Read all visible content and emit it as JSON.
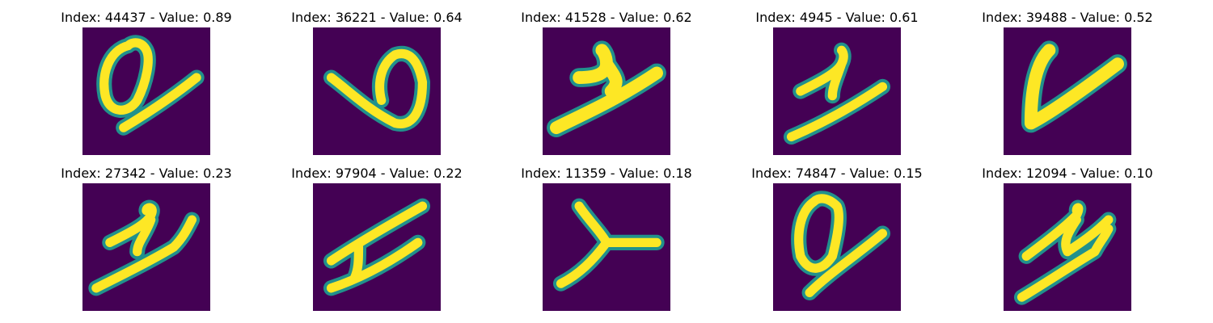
{
  "colors": {
    "background": "#440154",
    "stroke_outer": "#21918c",
    "stroke_inner": "#fde725"
  },
  "panels": [
    {
      "title": "Index: 44437 - Value: 0.89",
      "glyph": "loop-cross"
    },
    {
      "title": "Index: 36221 - Value: 0.64",
      "glyph": "loop-b"
    },
    {
      "title": "Index: 41528 - Value: 0.62",
      "glyph": "y-thick"
    },
    {
      "title": "Index: 4945 - Value: 0.61",
      "glyph": "z-slant"
    },
    {
      "title": "Index: 39488 - Value: 0.52",
      "glyph": "v-open"
    },
    {
      "title": "Index: 27342 - Value: 0.23",
      "glyph": "z-curl"
    },
    {
      "title": "Index: 97904 - Value: 0.22",
      "glyph": "h-slant"
    },
    {
      "title": "Index: 11359 - Value: 0.18",
      "glyph": "y-curve"
    },
    {
      "title": "Index: 74847 - Value: 0.15",
      "glyph": "loop-q"
    },
    {
      "title": "Index: 12094 - Value: 0.10",
      "glyph": "z-zig"
    }
  ]
}
